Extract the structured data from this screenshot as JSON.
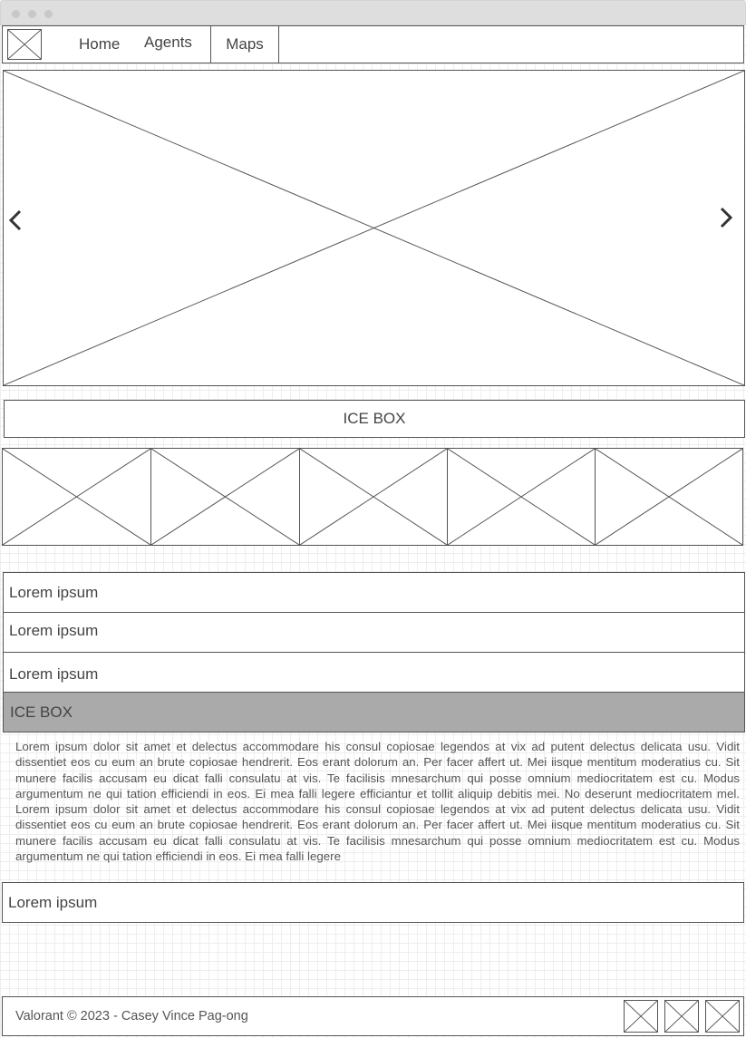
{
  "nav": {
    "home": "Home",
    "agents": "Agents",
    "maps": "Maps"
  },
  "map_title": "ICE BOX",
  "rows": [
    "Lorem ipsum",
    "Lorem ipsum",
    "Lorem ipsum"
  ],
  "accordion": {
    "title": "ICE BOX",
    "body": "Lorem ipsum dolor sit amet et delectus accommodare his consul copiosae legendos at vix ad putent delectus delicata usu. Vidit dissentiet eos cu eum an brute copiosae hendrerit. Eos erant dolorum an. Per facer affert ut. Mei iisque mentitum moderatius cu. Sit munere facilis accusam eu dicat falli consulatu at vis. Te facilisis mnesarchum qui posse omnium mediocritatem est cu. Modus argumentum ne qui tation efficiendi in eos. Ei mea falli legere efficiantur et tollit aliquip debitis mei. No deserunt mediocritatem mel. Lorem ipsum dolor sit amet et delectus accommodare his consul copiosae legendos at vix ad putent delectus delicata usu. Vidit dissentiet eos cu eum an brute copiosae hendrerit. Eos erant dolorum an. Per facer affert ut. Mei iisque mentitum moderatius cu. Sit munere facilis accusam eu dicat falli consulatu at vis. Te facilisis mnesarchum qui posse omnium mediocritatem est cu. Modus argumentum ne qui tation efficiendi in eos. Ei mea falli legere"
  },
  "last_row": "Lorem ipsum",
  "footer": {
    "text": "Valorant © 2023 - Casey Vince Pag-ong"
  },
  "colors": {
    "border": "#555555",
    "active_header": "#aaaaaa",
    "grid": "#eeeeee"
  }
}
